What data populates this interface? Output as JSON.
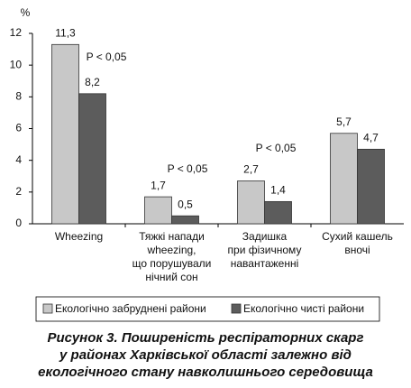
{
  "chart_data": {
    "type": "bar",
    "y_label": "%",
    "categories": [
      [
        "Wheezing"
      ],
      [
        "Тяжкі напади",
        "wheezing,",
        "що порушували",
        "нічний сон"
      ],
      [
        "Задишка",
        "при фізичному",
        "навантаженні"
      ],
      [
        "Сухий кашель",
        "вночі"
      ]
    ],
    "series": [
      {
        "name": "Екологічно забруднені райони",
        "color": "#c8c8c8",
        "values": [
          11.3,
          1.7,
          2.7,
          5.7
        ],
        "value_labels": [
          "11,3",
          "1,7",
          "2,7",
          "5,7"
        ]
      },
      {
        "name": "Екологічно чисті райони",
        "color": "#5c5c5c",
        "values": [
          8.2,
          0.5,
          1.4,
          4.7
        ],
        "value_labels": [
          "8,2",
          "0,5",
          "1,4",
          "4,7"
        ]
      }
    ],
    "ylim": [
      0,
      12
    ],
    "yticks": [
      0,
      2,
      4,
      6,
      8,
      10,
      12
    ],
    "annotations": [
      "P < 0,05",
      "P < 0,05",
      "P < 0,05"
    ],
    "caption": [
      "Рисунок 3. Поширеність респіраторних скарг",
      "у районах Харківської області залежно від",
      "екологічного стану навколишнього середовища"
    ]
  }
}
